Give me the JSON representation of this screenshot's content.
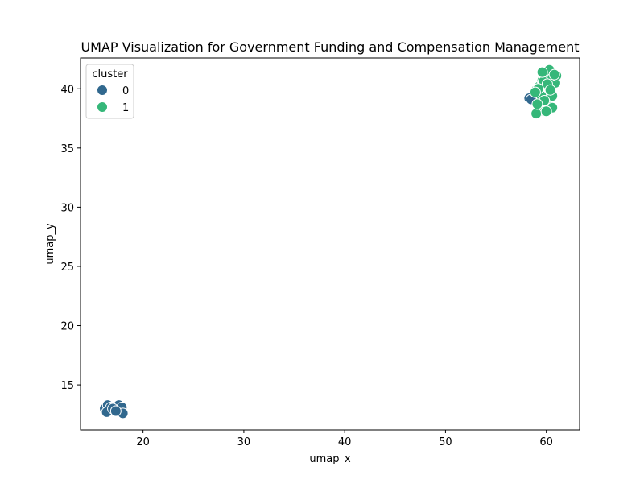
{
  "chart_data": {
    "type": "scatter",
    "title": "UMAP Visualization for Government Funding and Compensation Management",
    "xlabel": "umap_x",
    "ylabel": "umap_y",
    "xlim": [
      13.8,
      63.3
    ],
    "ylim": [
      11.2,
      42.6
    ],
    "xticks": [
      20,
      30,
      40,
      50,
      60
    ],
    "yticks": [
      15,
      20,
      25,
      30,
      35,
      40
    ],
    "grid": false,
    "legend": {
      "title": "cluster",
      "placement": "top-left"
    },
    "series": [
      {
        "name": "0",
        "color": "#31688e",
        "points": [
          [
            16.2,
            13.0
          ],
          [
            16.5,
            13.3
          ],
          [
            16.8,
            13.1
          ],
          [
            17.1,
            12.9
          ],
          [
            17.4,
            13.2
          ],
          [
            17.6,
            13.3
          ],
          [
            17.8,
            12.8
          ],
          [
            17.9,
            13.1
          ],
          [
            16.4,
            12.7
          ],
          [
            18.0,
            12.6
          ],
          [
            17.0,
            13.0
          ],
          [
            17.3,
            12.8
          ],
          [
            58.3,
            39.2
          ],
          [
            58.5,
            39.1
          ]
        ]
      },
      {
        "name": "1",
        "color": "#35b779",
        "points": [
          [
            59.0,
            39.9
          ],
          [
            59.3,
            40.2
          ],
          [
            59.6,
            40.7
          ],
          [
            59.8,
            41.1
          ],
          [
            60.0,
            41.3
          ],
          [
            60.3,
            41.6
          ],
          [
            60.6,
            40.9
          ],
          [
            60.9,
            40.5
          ],
          [
            61.0,
            41.1
          ],
          [
            60.6,
            39.4
          ],
          [
            60.2,
            38.5
          ],
          [
            60.6,
            38.4
          ],
          [
            59.3,
            38.1
          ],
          [
            59.0,
            37.9
          ],
          [
            60.0,
            38.1
          ],
          [
            59.5,
            39.4
          ],
          [
            59.7,
            40.6
          ],
          [
            60.1,
            40.4
          ],
          [
            59.2,
            40.0
          ],
          [
            58.9,
            39.7
          ],
          [
            59.8,
            39.0
          ],
          [
            60.4,
            39.9
          ],
          [
            59.6,
            41.4
          ],
          [
            60.8,
            41.2
          ],
          [
            59.1,
            38.7
          ]
        ]
      }
    ]
  }
}
